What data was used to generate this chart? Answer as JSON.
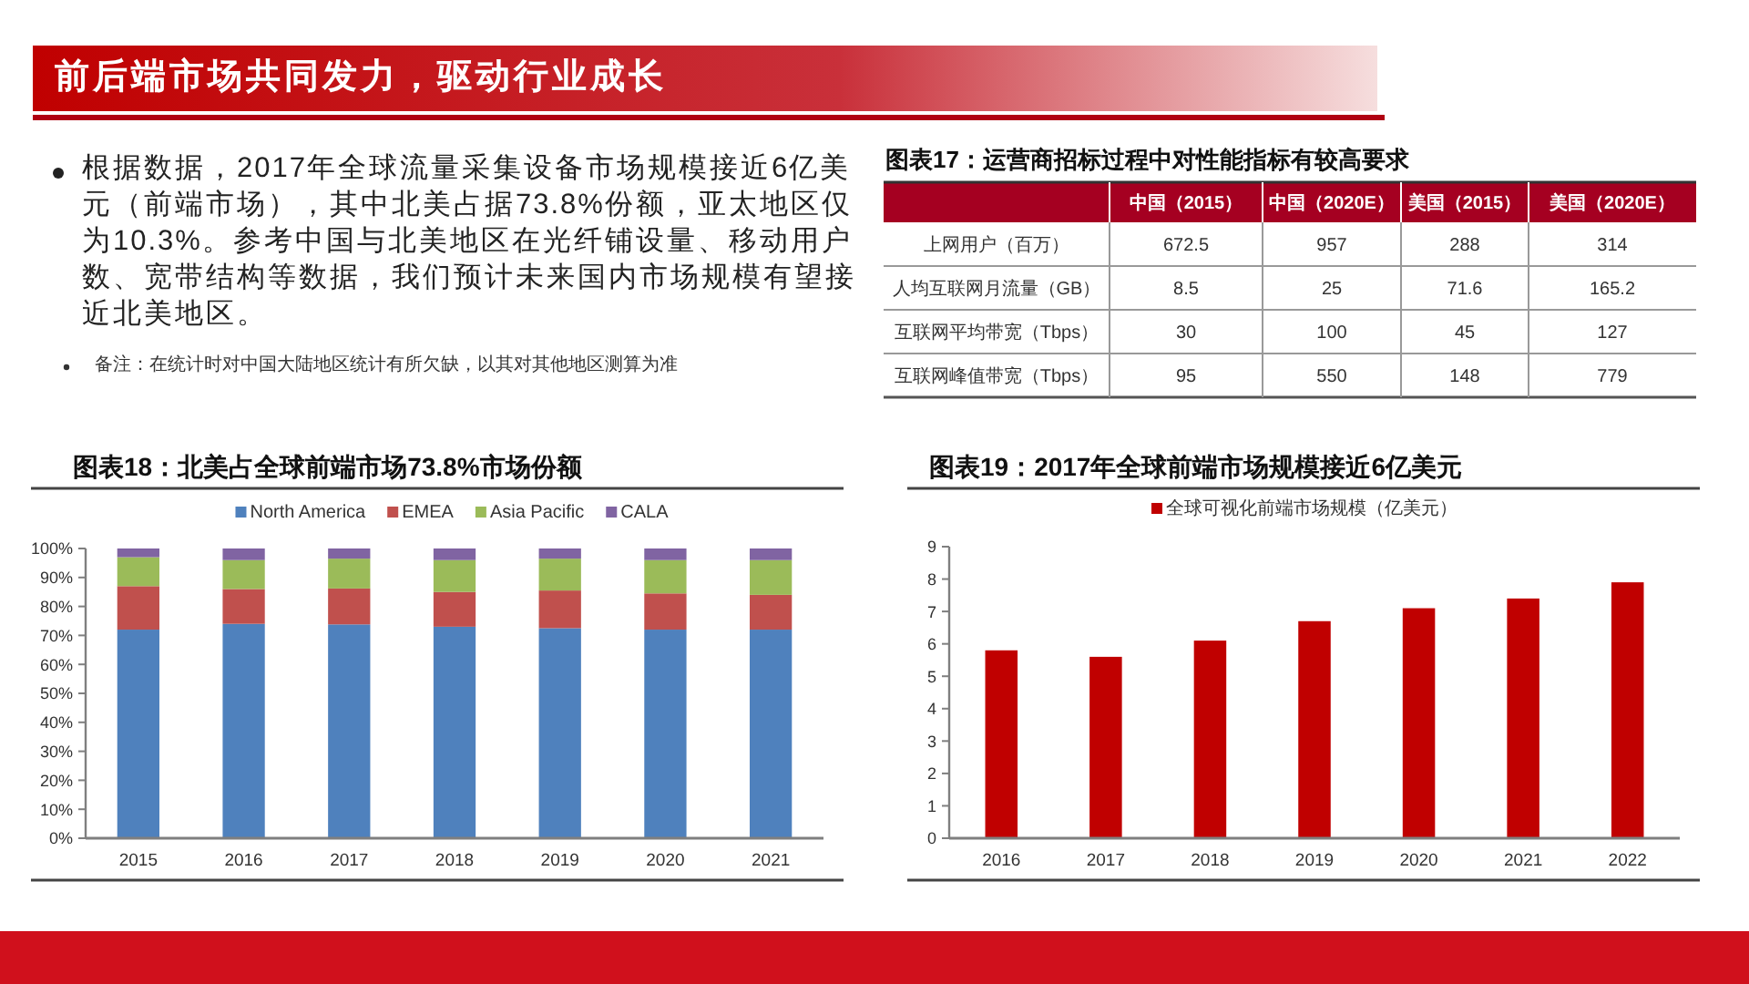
{
  "chart_data": [
    {
      "type": "other",
      "title": "前后端市场共同发力，驱动行业成长",
      "annotations": [
        "根据数据，2017年全球流量采集设备市场规模接近6亿美元（前端市场），其中北美占据73.8%份额，亚太地区仅为10.3%。参考中国与北美地区在光纤铺设量、移动用户数、宽带结构等数据，我们预计未来国内市场规模有望接近北美地区。",
        "备注：在统计时对中国大陆地区统计有所欠缺，以其对其他地区测算为准"
      ]
    },
    {
      "type": "heatmap",
      "title": "图表17：运营商招标过程中对性能指标有较高要求",
      "categories": [
        "中国（2015）",
        "中国（2020E）",
        "美国（2015）",
        "美国（2020E）"
      ],
      "y_categories": [
        "上网用户（百万）",
        "人均互联网月流量（GB）",
        "互联网平均带宽（Tbps）",
        "互联网峰值带宽（Tbps）"
      ],
      "cells": [
        [
          672.5,
          957,
          288,
          314
        ],
        [
          8.5,
          25,
          71.6,
          165.2
        ],
        [
          30,
          100,
          45,
          127
        ],
        [
          95,
          550,
          148,
          779
        ]
      ],
      "data_labels": true
    },
    {
      "type": "bar",
      "title": "图表18：北美占全球前端市场73.8%市场份额",
      "categories": [
        "2015",
        "2016",
        "2017",
        "2018",
        "2019",
        "2020",
        "2021"
      ],
      "stacked": true,
      "legend": "top",
      "ylim": [
        0,
        100
      ],
      "yticks": [
        {
          "value": 0,
          "label": "0%"
        },
        {
          "value": 10,
          "label": "10%"
        },
        {
          "value": 20,
          "label": "20%"
        },
        {
          "value": 30,
          "label": "30%"
        },
        {
          "value": 40,
          "label": "40%"
        },
        {
          "value": 50,
          "label": "50%"
        },
        {
          "value": 60,
          "label": "60%"
        },
        {
          "value": 70,
          "label": "70%"
        },
        {
          "value": 80,
          "label": "80%"
        },
        {
          "value": 90,
          "label": "90%"
        },
        {
          "value": 100,
          "label": "100%"
        }
      ],
      "series": [
        {
          "name": "North America",
          "color": "#4f81bd",
          "values": [
            72,
            74,
            73.8,
            73,
            72.5,
            72,
            72
          ]
        },
        {
          "name": "EMEA",
          "color": "#c0504d",
          "values": [
            15,
            12,
            12.4,
            12,
            13,
            12.5,
            12
          ]
        },
        {
          "name": "Asia Pacific",
          "color": "#9bbb59",
          "values": [
            10,
            10,
            10.3,
            11,
            11,
            11.5,
            12
          ]
        },
        {
          "name": "CALA",
          "color": "#8064a2",
          "values": [
            3,
            4,
            3.5,
            4,
            3.5,
            4,
            4
          ]
        }
      ]
    },
    {
      "type": "bar",
      "title": "图表19：2017年全球前端市场规模接近6亿美元",
      "categories": [
        "2016",
        "2017",
        "2018",
        "2019",
        "2020",
        "2021",
        "2022"
      ],
      "legend": "top",
      "ylim": [
        0,
        9
      ],
      "yticks": [
        0,
        1,
        2,
        3,
        4,
        5,
        6,
        7,
        8,
        9
      ],
      "series": [
        {
          "name": "全球可视化前端市场规模（亿美元）",
          "color": "#c00000",
          "values": [
            5.8,
            5.6,
            6.1,
            6.7,
            7.1,
            7.4,
            7.9
          ]
        }
      ]
    }
  ]
}
